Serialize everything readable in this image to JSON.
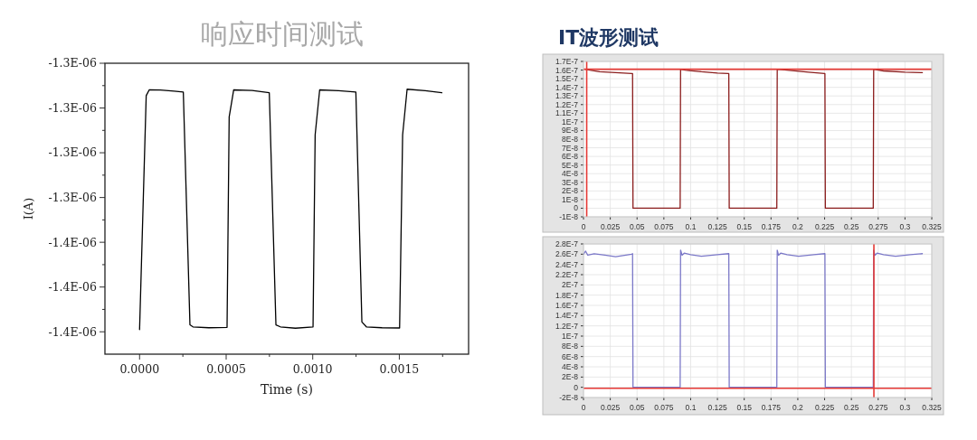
{
  "chart_data": [
    {
      "type": "line",
      "title": "响应时间测试",
      "xlabel": "Time (s)",
      "ylabel": "I(A)",
      "xlim": [
        -0.0002,
        0.0019
      ],
      "ylim": [
        -1.41e-06,
        -1.28e-06
      ],
      "grid": false,
      "xticks": [
        {
          "value": 0,
          "label": "0.0000"
        },
        {
          "value": 0.00025,
          "label": null
        },
        {
          "value": 0.0005,
          "label": "0.0005"
        },
        {
          "value": 0.00075,
          "label": null
        },
        {
          "value": 0.001,
          "label": "0.0010"
        },
        {
          "value": 0.00125,
          "label": null
        },
        {
          "value": 0.0015,
          "label": "0.0015"
        },
        {
          "value": 0.00175,
          "label": null
        }
      ],
      "yticks": [
        {
          "value": -1.28e-06,
          "label": "-1.3E-06"
        },
        {
          "value": -1.29e-06,
          "label": null
        },
        {
          "value": -1.3e-06,
          "label": "-1.3E-06"
        },
        {
          "value": -1.31e-06,
          "label": null
        },
        {
          "value": -1.32e-06,
          "label": "-1.3E-06"
        },
        {
          "value": -1.33e-06,
          "label": null
        },
        {
          "value": -1.34e-06,
          "label": "-1.3E-06"
        },
        {
          "value": -1.35e-06,
          "label": null
        },
        {
          "value": -1.36e-06,
          "label": "-1.4E-06"
        },
        {
          "value": -1.37e-06,
          "label": null
        },
        {
          "value": -1.38e-06,
          "label": "-1.4E-06"
        },
        {
          "value": -1.39e-06,
          "label": null
        },
        {
          "value": -1.4e-06,
          "label": "-1.4E-06"
        }
      ],
      "series": [
        {
          "color": "#000000",
          "x": [
            0,
            3.83e-05,
            5.57e-05,
            0.00012,
            0.0002,
            0.0002526,
            0.0002909,
            0.0003083,
            0.0004,
            0.0005052,
            0.0005174,
            0.0005435,
            0.00065,
            0.0007491,
            0.0007874,
            0.0008135,
            0.0009,
            0.0010017,
            0.0010139,
            0.00104,
            0.00115,
            0.001249,
            0.0012838,
            0.00131,
            0.0014,
            0.0015016,
            0.001519,
            0.001545,
            0.00165,
            0.0017456
          ],
          "values": [
            -1.399e-06,
            -1.2945e-06,
            -1.2919e-06,
            -1.292e-06,
            -1.2925e-06,
            -1.2929e-06,
            -1.3969e-06,
            -1.3978e-06,
            -1.3982e-06,
            -1.398e-06,
            -1.304e-06,
            -1.2919e-06,
            -1.2922e-06,
            -1.2932e-06,
            -1.3969e-06,
            -1.3978e-06,
            -1.3984e-06,
            -1.3978e-06,
            -1.312e-06,
            -1.2919e-06,
            -1.2923e-06,
            -1.2929e-06,
            -1.3956e-06,
            -1.3978e-06,
            -1.3982e-06,
            -1.3983e-06,
            -1.312e-06,
            -1.2916e-06,
            -1.2923e-06,
            -1.2932e-06
          ]
        }
      ]
    },
    {
      "type": "line",
      "title": "IT波形测试",
      "xlim": [
        0,
        0.325
      ],
      "ylim": [
        -1e-08,
        1.7e-07
      ],
      "grid": true,
      "xticks": [
        0,
        0.025,
        0.05,
        0.075,
        0.1,
        0.125,
        0.15,
        0.175,
        0.2,
        0.225,
        0.25,
        0.275,
        0.3,
        0.325
      ],
      "yticks": [
        {
          "value": -1e-08,
          "label": "-1E-8"
        },
        0,
        {
          "value": 1e-08,
          "label": "1E-8"
        },
        {
          "value": 2e-08,
          "label": "2E-8"
        },
        {
          "value": 3e-08,
          "label": "3E-8"
        },
        {
          "value": 4e-08,
          "label": "4E-8"
        },
        {
          "value": 5e-08,
          "label": "5E-8"
        },
        {
          "value": 6e-08,
          "label": "6E-8"
        },
        {
          "value": 7e-08,
          "label": "7E-8"
        },
        {
          "value": 8e-08,
          "label": "8E-8"
        },
        {
          "value": 9e-08,
          "label": "9E-8"
        },
        {
          "value": 1e-07,
          "label": "1E-7"
        },
        {
          "value": 1.1e-07,
          "label": "1.1E-7"
        },
        {
          "value": 1.2e-07,
          "label": "1.2E-7"
        },
        {
          "value": 1.3e-07,
          "label": "1.3E-7"
        },
        {
          "value": 1.4e-07,
          "label": "1.4E-7"
        },
        {
          "value": 1.5e-07,
          "label": "1.5E-7"
        },
        {
          "value": 1.6e-07,
          "label": "1.6E-7"
        },
        {
          "value": 1.7e-07,
          "label": "1.7E-7"
        }
      ],
      "ref_lines": [
        {
          "axis": "y",
          "value": 1.61e-07,
          "color": "#e53935"
        },
        {
          "axis": "x",
          "value": 0.003,
          "color": "#e53935"
        }
      ],
      "series": [
        {
          "color": "#8b1c1c",
          "x": [
            0.002,
            0.006,
            0.015,
            0.03,
            0.045,
            0.0458,
            0.0462,
            0.07,
            0.0902,
            0.0906,
            0.095,
            0.11,
            0.125,
            0.135,
            0.1356,
            0.136,
            0.16,
            0.1804,
            0.1808,
            0.19,
            0.21,
            0.225,
            0.2253,
            0.2257,
            0.25,
            0.2704,
            0.2708,
            0.28,
            0.3,
            0.3162
          ],
          "values": [
            1.61e-07,
            1.6e-07,
            1.58e-07,
            1.57e-07,
            1.56e-07,
            1.56e-07,
            0,
            0,
            0,
            1.61e-07,
            1.6e-07,
            1.58e-07,
            1.565e-07,
            1.56e-07,
            1.56e-07,
            0,
            0,
            0,
            1.61e-07,
            1.6e-07,
            1.575e-07,
            1.56e-07,
            1.56e-07,
            0,
            0,
            0,
            1.61e-07,
            1.59e-07,
            1.575e-07,
            1.57e-07
          ]
        }
      ]
    },
    {
      "type": "line",
      "xlim": [
        0,
        0.325
      ],
      "ylim": [
        -2e-08,
        2.8e-07
      ],
      "grid": true,
      "xticks": [
        0,
        0.025,
        0.05,
        0.075,
        0.1,
        0.125,
        0.15,
        0.175,
        0.2,
        0.225,
        0.25,
        0.275,
        0.3,
        0.325
      ],
      "yticks": [
        {
          "value": -2e-08,
          "label": "-2E-8"
        },
        0,
        {
          "value": 2e-08,
          "label": "2E-8"
        },
        {
          "value": 4e-08,
          "label": "4E-8"
        },
        {
          "value": 6e-08,
          "label": "6E-8"
        },
        {
          "value": 8e-08,
          "label": "8E-8"
        },
        {
          "value": 1e-07,
          "label": "1E-7"
        },
        {
          "value": 1.2e-07,
          "label": "1.2E-7"
        },
        {
          "value": 1.4e-07,
          "label": "1.4E-7"
        },
        {
          "value": 1.6e-07,
          "label": "1.6E-7"
        },
        {
          "value": 1.8e-07,
          "label": "1.8E-7"
        },
        {
          "value": 2e-07,
          "label": "2E-7"
        },
        {
          "value": 2.2e-07,
          "label": "2.2E-7"
        },
        {
          "value": 2.4e-07,
          "label": "2.4E-7"
        },
        {
          "value": 2.6e-07,
          "label": "2.6E-7"
        },
        {
          "value": 2.8e-07,
          "label": "2.8E-7"
        }
      ],
      "ref_lines": [
        {
          "axis": "y",
          "value": -2e-09,
          "color": "#e53935"
        },
        {
          "axis": "x",
          "value": 0.271,
          "color": "#e53935"
        }
      ],
      "series": [
        {
          "color": "#7b78c8",
          "x": [
            0,
            0.002,
            0.004,
            0.01,
            0.02,
            0.03,
            0.045,
            0.0458,
            0.0462,
            0.07,
            0.0902,
            0.0906,
            0.092,
            0.094,
            0.1,
            0.11,
            0.125,
            0.1356,
            0.136,
            0.16,
            0.1804,
            0.1808,
            0.182,
            0.184,
            0.19,
            0.2008,
            0.215,
            0.2253,
            0.2257,
            0.25,
            0.2704,
            0.2708,
            0.272,
            0.274,
            0.28,
            0.2912,
            0.305,
            0.3162
          ],
          "values": [
            2.6e-07,
            2.66e-07,
            2.58e-07,
            2.61e-07,
            2.58e-07,
            2.55e-07,
            2.6e-07,
            2.61e-07,
            0,
            0,
            0,
            2.68e-07,
            2.58e-07,
            2.62e-07,
            2.59e-07,
            2.56e-07,
            2.59e-07,
            2.61e-07,
            0,
            0,
            0,
            2.68e-07,
            2.58e-07,
            2.62e-07,
            2.59e-07,
            2.56e-07,
            2.59e-07,
            2.61e-07,
            0,
            0,
            0,
            2.68e-07,
            2.58e-07,
            2.62e-07,
            2.59e-07,
            2.56e-07,
            2.59e-07,
            2.61e-07
          ]
        }
      ]
    }
  ]
}
